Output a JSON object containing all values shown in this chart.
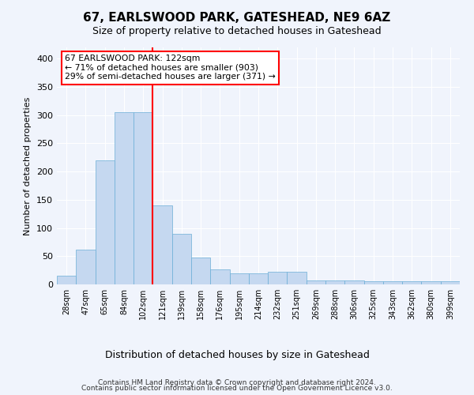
{
  "title": "67, EARLSWOOD PARK, GATESHEAD, NE9 6AZ",
  "subtitle": "Size of property relative to detached houses in Gateshead",
  "xlabel": "Distribution of detached houses by size in Gateshead",
  "ylabel": "Number of detached properties",
  "bar_labels": [
    "28sqm",
    "47sqm",
    "65sqm",
    "84sqm",
    "102sqm",
    "121sqm",
    "139sqm",
    "158sqm",
    "176sqm",
    "195sqm",
    "214sqm",
    "232sqm",
    "251sqm",
    "269sqm",
    "288sqm",
    "306sqm",
    "325sqm",
    "343sqm",
    "362sqm",
    "380sqm",
    "399sqm"
  ],
  "bar_values": [
    15,
    62,
    220,
    305,
    305,
    140,
    90,
    47,
    27,
    20,
    20,
    22,
    22,
    7,
    7,
    7,
    5,
    5,
    5,
    5,
    5
  ],
  "bar_color": "#c5d8f0",
  "bar_edgecolor": "#6aaed6",
  "vline_x": 5.0,
  "vline_color": "red",
  "annotation_text": "67 EARLSWOOD PARK: 122sqm\n← 71% of detached houses are smaller (903)\n29% of semi-detached houses are larger (371) →",
  "annotation_box_color": "white",
  "annotation_box_edgecolor": "red",
  "ylim": [
    0,
    420
  ],
  "yticks": [
    0,
    50,
    100,
    150,
    200,
    250,
    300,
    350,
    400
  ],
  "footer1": "Contains HM Land Registry data © Crown copyright and database right 2024.",
  "footer2": "Contains public sector information licensed under the Open Government Licence v3.0.",
  "bg_color": "#f0f4fc",
  "plot_bg_color": "#f0f4fc",
  "grid_color": "#ffffff",
  "title_fontsize": 11,
  "subtitle_fontsize": 9,
  "xlabel_fontsize": 9,
  "ylabel_fontsize": 8
}
